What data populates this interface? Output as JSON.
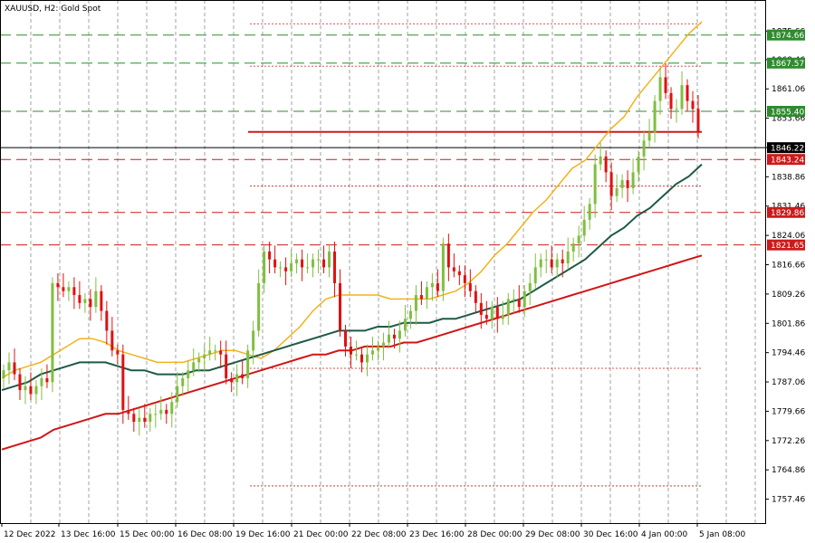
{
  "header": {
    "title": "XAUUSD, H2:  Gold Spot"
  },
  "colors": {
    "background": "#ffffff",
    "grid": "#8c8c8c",
    "bull": "#7fbf3f",
    "bear": "#e01010",
    "ma_fast": "#f2b21d",
    "ma_mid": "#1e5a46",
    "ma_slow": "#d01515",
    "green_level": "#2e8b2e",
    "red_level": "#cc1a1a",
    "current": "#000000"
  },
  "chart_data": {
    "type": "line",
    "title": "XAUUSD, H2:  Gold Spot",
    "ylim": [
      1752,
      1880
    ],
    "y_ticks": [
      "1875.66",
      "1868.46",
      "1861.06",
      "1853.66",
      "1846.26",
      "1838.86",
      "1831.46",
      "1824.06",
      "1816.66",
      "1809.26",
      "1801.86",
      "1794.46",
      "1787.06",
      "1779.66",
      "1772.26",
      "1764.86",
      "1757.46"
    ],
    "y_tick_values": [
      1875.66,
      1868.46,
      1861.06,
      1853.66,
      1846.26,
      1838.86,
      1831.46,
      1824.06,
      1816.66,
      1809.26,
      1801.86,
      1794.46,
      1787.06,
      1779.66,
      1772.26,
      1764.86,
      1757.46
    ],
    "x_ticks": [
      "12 Dec 2022",
      "13 Dec 16:00",
      "15 Dec 00:00",
      "16 Dec 08:00",
      "19 Dec 16:00",
      "21 Dec 00:00",
      "22 Dec 08:00",
      "23 Dec 16:00",
      "28 Dec 00:00",
      "29 Dec 08:00",
      "30 Dec 16:00",
      "4 Jan 00:00",
      "5 Jan 08:00"
    ],
    "price_levels": [
      {
        "value": 1874.66,
        "label": "1874.66",
        "color": "#2e8b2e",
        "style": "dashed"
      },
      {
        "value": 1867.57,
        "label": "1867.57",
        "color": "#2e8b2e",
        "style": "dashed"
      },
      {
        "value": 1855.4,
        "label": "1855.40",
        "color": "#2e8b2e",
        "style": "dashed"
      },
      {
        "value": 1846.22,
        "label": "1846.22",
        "color": "#000000",
        "style": "solid"
      },
      {
        "value": 1843.24,
        "label": "1843.24",
        "color": "#cc1a1a",
        "style": "dashed"
      },
      {
        "value": 1829.86,
        "label": "1829.86",
        "color": "#cc1a1a",
        "style": "dashed"
      },
      {
        "value": 1821.65,
        "label": "1821.65",
        "color": "#cc1a1a",
        "style": "dashed"
      }
    ],
    "series": [
      {
        "name": "",
        "kind": "close",
        "values": [
          1790,
          1792,
          1789,
          1785,
          1786,
          1784,
          1786,
          1788,
          1787,
          1812,
          1811,
          1810,
          1811,
          1809,
          1807,
          1808,
          1806,
          1810,
          1805,
          1800,
          1795,
          1794,
          1780,
          1779,
          1777,
          1778,
          1777,
          1779,
          1779,
          1780,
          1779,
          1782,
          1786,
          1788,
          1790,
          1792,
          1793,
          1794,
          1795,
          1795,
          1794,
          1788,
          1787,
          1789,
          1788,
          1795,
          1800,
          1812,
          1820,
          1818,
          1816,
          1816,
          1815,
          1817,
          1818,
          1816,
          1816,
          1818,
          1818,
          1816,
          1820,
          1812,
          1800,
          1796,
          1794,
          1794,
          1792,
          1794,
          1795,
          1796,
          1797,
          1799,
          1798,
          1800,
          1803,
          1805,
          1809,
          1808,
          1811,
          1812,
          1810,
          1822,
          1816,
          1815,
          1814,
          1812,
          1810,
          1807,
          1804,
          1803,
          1806,
          1803,
          1804,
          1808,
          1808,
          1806,
          1810,
          1812,
          1816,
          1818,
          1818,
          1816,
          1818,
          1817,
          1820,
          1822,
          1824,
          1828,
          1832,
          1842,
          1844,
          1840,
          1834,
          1836,
          1838,
          1836,
          1840,
          1844,
          1848,
          1850,
          1858,
          1864,
          1860,
          1856,
          1856,
          1862,
          1858,
          1856,
          1850
        ]
      },
      {
        "name": "",
        "kind": "ma_fast",
        "values": [
          1788,
          1790,
          1791,
          1792,
          1794,
          1796,
          1798,
          1798,
          1797,
          1795,
          1794,
          1793,
          1792,
          1792,
          1792,
          1793,
          1794,
          1795,
          1795,
          1794,
          1793,
          1795,
          1798,
          1801,
          1805,
          1808,
          1809,
          1809,
          1809,
          1809,
          1808,
          1808,
          1808,
          1808,
          1809,
          1810,
          1812,
          1815,
          1819,
          1822,
          1826,
          1830,
          1833,
          1837,
          1841,
          1843,
          1847,
          1851,
          1854,
          1859,
          1863,
          1867,
          1871,
          1875,
          1878
        ]
      },
      {
        "name": "",
        "kind": "ma_mid",
        "values": [
          1785,
          1786,
          1787,
          1789,
          1790,
          1791,
          1792,
          1792,
          1792,
          1791,
          1790,
          1790,
          1789,
          1789,
          1789,
          1790,
          1790,
          1791,
          1792,
          1793,
          1794,
          1795,
          1796,
          1797,
          1798,
          1799,
          1800,
          1800,
          1800,
          1801,
          1801,
          1802,
          1802,
          1802,
          1803,
          1803,
          1804,
          1805,
          1806,
          1807,
          1808,
          1810,
          1812,
          1814,
          1816,
          1818,
          1821,
          1824,
          1826,
          1829,
          1831,
          1834,
          1837,
          1839,
          1842
        ]
      },
      {
        "name": "",
        "kind": "ma_slow",
        "values": [
          1770,
          1771,
          1772,
          1773,
          1775,
          1776,
          1777,
          1778,
          1779,
          1779,
          1780,
          1781,
          1782,
          1783,
          1784,
          1785,
          1786,
          1787,
          1788,
          1789,
          1790,
          1791,
          1792,
          1793,
          1794,
          1794,
          1795,
          1795,
          1796,
          1796,
          1796,
          1797,
          1797,
          1798,
          1799,
          1800,
          1801,
          1802,
          1803,
          1804,
          1805,
          1806,
          1807,
          1808,
          1809,
          1810,
          1811,
          1812,
          1813,
          1814,
          1815,
          1816,
          1817,
          1818,
          1819
        ]
      }
    ]
  }
}
